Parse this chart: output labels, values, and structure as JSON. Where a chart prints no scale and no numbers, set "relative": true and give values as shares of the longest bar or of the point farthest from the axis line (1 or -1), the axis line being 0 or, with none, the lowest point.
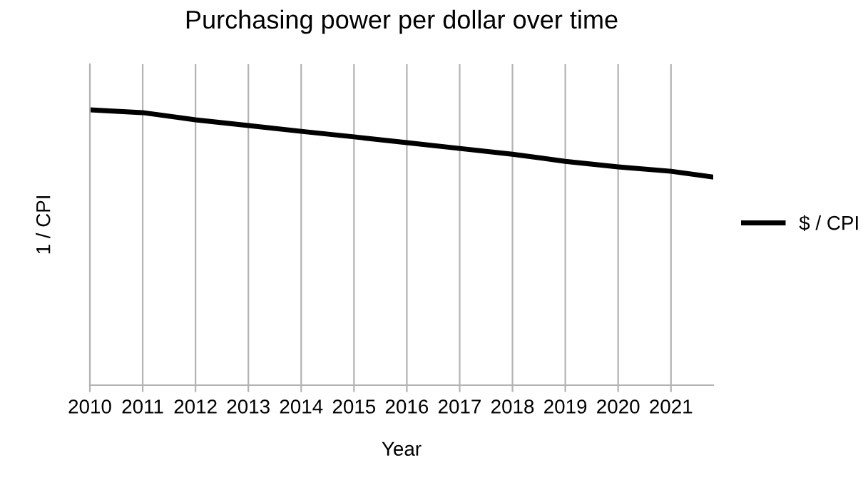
{
  "chart_data": {
    "type": "line",
    "title": "Purchasing power per dollar over time",
    "xlabel": "Year",
    "ylabel": "1 / CPI",
    "relative": true,
    "x": [
      2010,
      2011,
      2012,
      2013,
      2014,
      2015,
      2016,
      2017,
      2018,
      2019,
      2020,
      2021,
      2021.8
    ],
    "xlim": [
      2010,
      2021.8
    ],
    "xticks": [
      2010,
      2011,
      2012,
      2013,
      2014,
      2015,
      2016,
      2017,
      2018,
      2019,
      2020,
      2021
    ],
    "series": [
      {
        "name": "$ / CPI",
        "color": "#000000",
        "values": [
          1.0,
          0.99,
          0.964,
          0.943,
          0.922,
          0.902,
          0.881,
          0.86,
          0.839,
          0.813,
          0.793,
          0.777,
          0.756
        ]
      }
    ],
    "grid": "x",
    "legend": "right",
    "marker": "none",
    "line_style": "solid"
  }
}
